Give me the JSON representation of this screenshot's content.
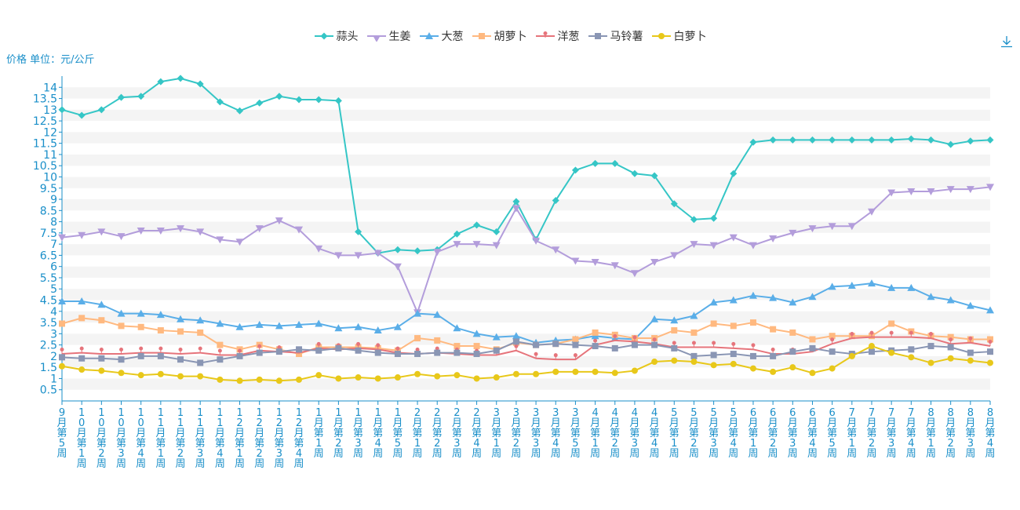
{
  "colors": {
    "axis": "#1a8fc9",
    "grid_band": "#f4f4f4"
  },
  "icons": {
    "download": "download-icon"
  },
  "chart_data": {
    "type": "line",
    "ylabel": "价格 单位：元/公斤",
    "ylim": [
      0,
      14.5
    ],
    "y_ticks": [
      "0.5",
      "1",
      "1.5",
      "2",
      "2.5",
      "3",
      "3.5",
      "4",
      "4.5",
      "5",
      "5.5",
      "6",
      "6.5",
      "7",
      "7.5",
      "8",
      "8.5",
      "9",
      "9.5",
      "10",
      "10.5",
      "11",
      "11.5",
      "12",
      "12.5",
      "13",
      "13.5",
      "14"
    ],
    "categories": [
      "9月第5周",
      "10月第1周",
      "10月第2周",
      "10月第3周",
      "10月第4周",
      "11月第1周",
      "11月第2周",
      "11月第3周",
      "11月第4周",
      "12月第1周",
      "12月第2周",
      "12月第3周",
      "12月第4周",
      "1月第1周",
      "1月第2周",
      "1月第3周",
      "1月第4周",
      "1月第5周",
      "2月第1周",
      "2月第2周",
      "2月第3周",
      "2月第4周",
      "3月第1周",
      "3月第2周",
      "3月第3周",
      "3月第4周",
      "3月第5周",
      "4月第1周",
      "4月第2周",
      "4月第3周",
      "4月第4周",
      "5月第1周",
      "5月第2周",
      "5月第3周",
      "5月第4周",
      "6月第1周",
      "6月第2周",
      "6月第3周",
      "6月第4周",
      "6月第5周",
      "7月第1周",
      "7月第2周",
      "7月第3周",
      "7月第4周",
      "8月第1周",
      "8月第2周",
      "8月第3周",
      "8月第4周"
    ],
    "legend_position": "top-center",
    "grid": true,
    "series": [
      {
        "name": "蒜头",
        "color": "#35c6c6",
        "marker": "diamond",
        "values": [
          13.0,
          12.75,
          13.0,
          13.55,
          13.6,
          14.25,
          14.4,
          14.15,
          13.35,
          12.95,
          13.3,
          13.6,
          13.45,
          13.45,
          13.4,
          7.55,
          6.6,
          6.75,
          6.7,
          6.75,
          7.45,
          7.85,
          7.55,
          8.9,
          7.2,
          8.95,
          10.3,
          10.6,
          10.6,
          10.15,
          10.05,
          8.8,
          8.1,
          8.15,
          10.15,
          11.55,
          11.65,
          11.65,
          11.65,
          11.65,
          11.65,
          11.65,
          11.65,
          11.7,
          11.65,
          11.45,
          11.6,
          11.65
        ]
      },
      {
        "name": "生姜",
        "color": "#b39ddb",
        "marker": "triangle-down",
        "values": [
          7.3,
          7.4,
          7.55,
          7.35,
          7.6,
          7.6,
          7.7,
          7.55,
          7.2,
          7.1,
          7.7,
          8.05,
          7.65,
          6.8,
          6.5,
          6.5,
          6.6,
          6.0,
          3.95,
          6.65,
          7.0,
          7.0,
          6.95,
          8.6,
          7.15,
          6.75,
          6.25,
          6.2,
          6.05,
          5.7,
          6.2,
          6.5,
          7.0,
          6.95,
          7.3,
          6.95,
          7.25,
          7.5,
          7.7,
          7.8,
          7.8,
          8.45,
          9.3,
          9.35,
          9.35,
          9.45,
          9.45,
          9.55
        ]
      },
      {
        "name": "大葱",
        "color": "#5aaee8",
        "marker": "triangle",
        "values": [
          4.45,
          4.45,
          4.3,
          3.9,
          3.9,
          3.85,
          3.65,
          3.6,
          3.45,
          3.3,
          3.4,
          3.35,
          3.4,
          3.45,
          3.25,
          3.3,
          3.15,
          3.3,
          3.9,
          3.85,
          3.25,
          3.0,
          2.85,
          2.9,
          2.6,
          2.7,
          2.75,
          2.9,
          2.8,
          2.75,
          3.65,
          3.6,
          3.8,
          4.4,
          4.5,
          4.7,
          4.6,
          4.4,
          4.65,
          5.1,
          5.15,
          5.25,
          5.05,
          5.05,
          4.65,
          4.5,
          4.25,
          4.05
        ]
      },
      {
        "name": "胡萝卜",
        "color": "#ffb980",
        "marker": "square",
        "values": [
          3.45,
          3.7,
          3.6,
          3.35,
          3.3,
          3.15,
          3.1,
          3.05,
          2.5,
          2.3,
          2.5,
          2.3,
          2.1,
          2.4,
          2.4,
          2.4,
          2.35,
          2.25,
          2.8,
          2.7,
          2.45,
          2.45,
          2.3,
          2.6,
          2.5,
          2.55,
          2.75,
          3.05,
          2.95,
          2.8,
          2.8,
          3.15,
          3.05,
          3.45,
          3.35,
          3.5,
          3.2,
          3.05,
          2.75,
          2.9,
          2.9,
          2.9,
          3.45,
          3.1,
          2.9,
          2.85,
          2.75,
          2.75
        ]
      },
      {
        "name": "洋葱",
        "color": "#e6747b",
        "marker": "pin",
        "values": [
          2.1,
          2.15,
          2.1,
          2.1,
          2.15,
          2.15,
          2.1,
          2.15,
          2.05,
          2.05,
          2.25,
          2.2,
          2.15,
          2.35,
          2.3,
          2.35,
          2.3,
          2.15,
          2.1,
          2.15,
          2.1,
          2.05,
          2.05,
          2.25,
          1.9,
          1.85,
          1.85,
          2.5,
          2.7,
          2.65,
          2.55,
          2.4,
          2.4,
          2.4,
          2.35,
          2.3,
          2.1,
          2.1,
          2.2,
          2.55,
          2.8,
          2.85,
          2.85,
          2.85,
          2.8,
          2.55,
          2.6,
          2.45
        ]
      },
      {
        "name": "马铃薯",
        "color": "#8a96b4",
        "marker": "square",
        "values": [
          1.95,
          1.9,
          1.9,
          1.85,
          2.0,
          2.0,
          1.85,
          1.7,
          1.85,
          2.0,
          2.15,
          2.2,
          2.3,
          2.25,
          2.35,
          2.25,
          2.15,
          2.1,
          2.1,
          2.15,
          2.15,
          2.1,
          2.25,
          2.65,
          2.5,
          2.55,
          2.5,
          2.45,
          2.35,
          2.5,
          2.5,
          2.35,
          2.0,
          2.05,
          2.1,
          2.0,
          2.0,
          2.2,
          2.35,
          2.2,
          2.1,
          2.2,
          2.25,
          2.3,
          2.45,
          2.4,
          2.15,
          2.2
        ]
      },
      {
        "name": "白萝卜",
        "color": "#e8c81a",
        "marker": "circle",
        "values": [
          1.55,
          1.4,
          1.35,
          1.25,
          1.15,
          1.2,
          1.1,
          1.1,
          0.95,
          0.9,
          0.95,
          0.9,
          0.95,
          1.15,
          1.0,
          1.05,
          1.0,
          1.05,
          1.2,
          1.1,
          1.15,
          1.0,
          1.05,
          1.2,
          1.2,
          1.3,
          1.3,
          1.3,
          1.25,
          1.35,
          1.75,
          1.8,
          1.75,
          1.6,
          1.65,
          1.45,
          1.3,
          1.5,
          1.25,
          1.45,
          2.0,
          2.45,
          2.15,
          1.95,
          1.7,
          1.9,
          1.8,
          1.7
        ]
      }
    ]
  }
}
